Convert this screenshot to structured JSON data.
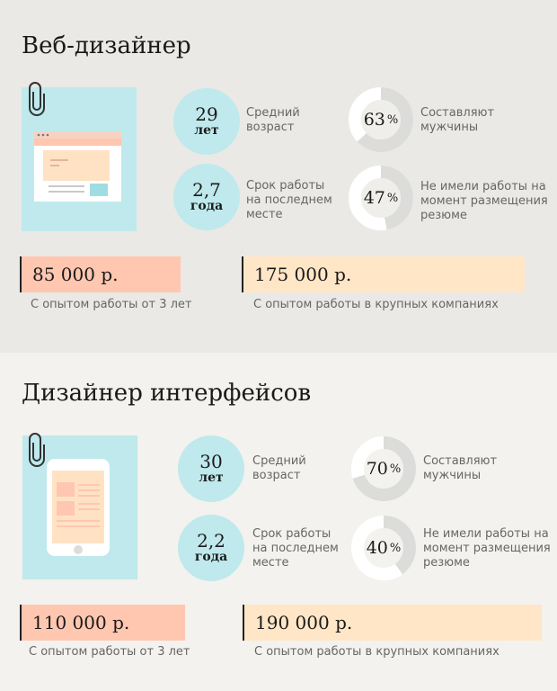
{
  "sections": [
    {
      "title": "Веб-дизайнер",
      "age": {
        "value": "29",
        "unit": "лет",
        "label": [
          "Средний",
          "возраст"
        ]
      },
      "tenure": {
        "value": "2,7",
        "unit": "года",
        "label": [
          "Срок работы",
          "на последнем",
          "месте"
        ]
      },
      "men": {
        "value": "63",
        "unit": "%",
        "percent": 63,
        "label": [
          "Составляют",
          "мужчины"
        ]
      },
      "unemployed": {
        "value": "47",
        "unit": "%",
        "percent": 47,
        "label": [
          "Не имели работы на",
          "момент размещения",
          "резюме"
        ]
      },
      "salary_exp": {
        "value": "85 000 р.",
        "caption": "С опытом работы от 3 лет"
      },
      "salary_big": {
        "value": "175 000 р.",
        "caption": "С опытом работы в крупных компаниях"
      },
      "illustration": "browser-window-icon"
    },
    {
      "title": "Дизайнер интерфейсов",
      "age": {
        "value": "30",
        "unit": "лет",
        "label": [
          "Средний",
          "возраст"
        ]
      },
      "tenure": {
        "value": "2,2",
        "unit": "года",
        "label": [
          "Срок работы",
          "на последнем",
          "месте"
        ]
      },
      "men": {
        "value": "70",
        "unit": "%",
        "percent": 70,
        "label": [
          "Составляют",
          "мужчины"
        ]
      },
      "unemployed": {
        "value": "40",
        "unit": "%",
        "percent": 40,
        "label": [
          "Не имели работы на",
          "момент размещения",
          "резюме"
        ]
      },
      "salary_exp": {
        "value": "110 000 р.",
        "caption": "С опытом работы от 3 лет"
      },
      "salary_big": {
        "value": "190 000 р.",
        "caption": "С опытом работы в крупных компаниях"
      },
      "illustration": "smartphone-icon"
    }
  ],
  "colors": {
    "circle": "#bfe9ec",
    "donut_fill": "#dcdcda",
    "donut_track": "#ffffff",
    "salary_pink": "#ffc6b0",
    "salary_cream": "#ffe6c6"
  }
}
